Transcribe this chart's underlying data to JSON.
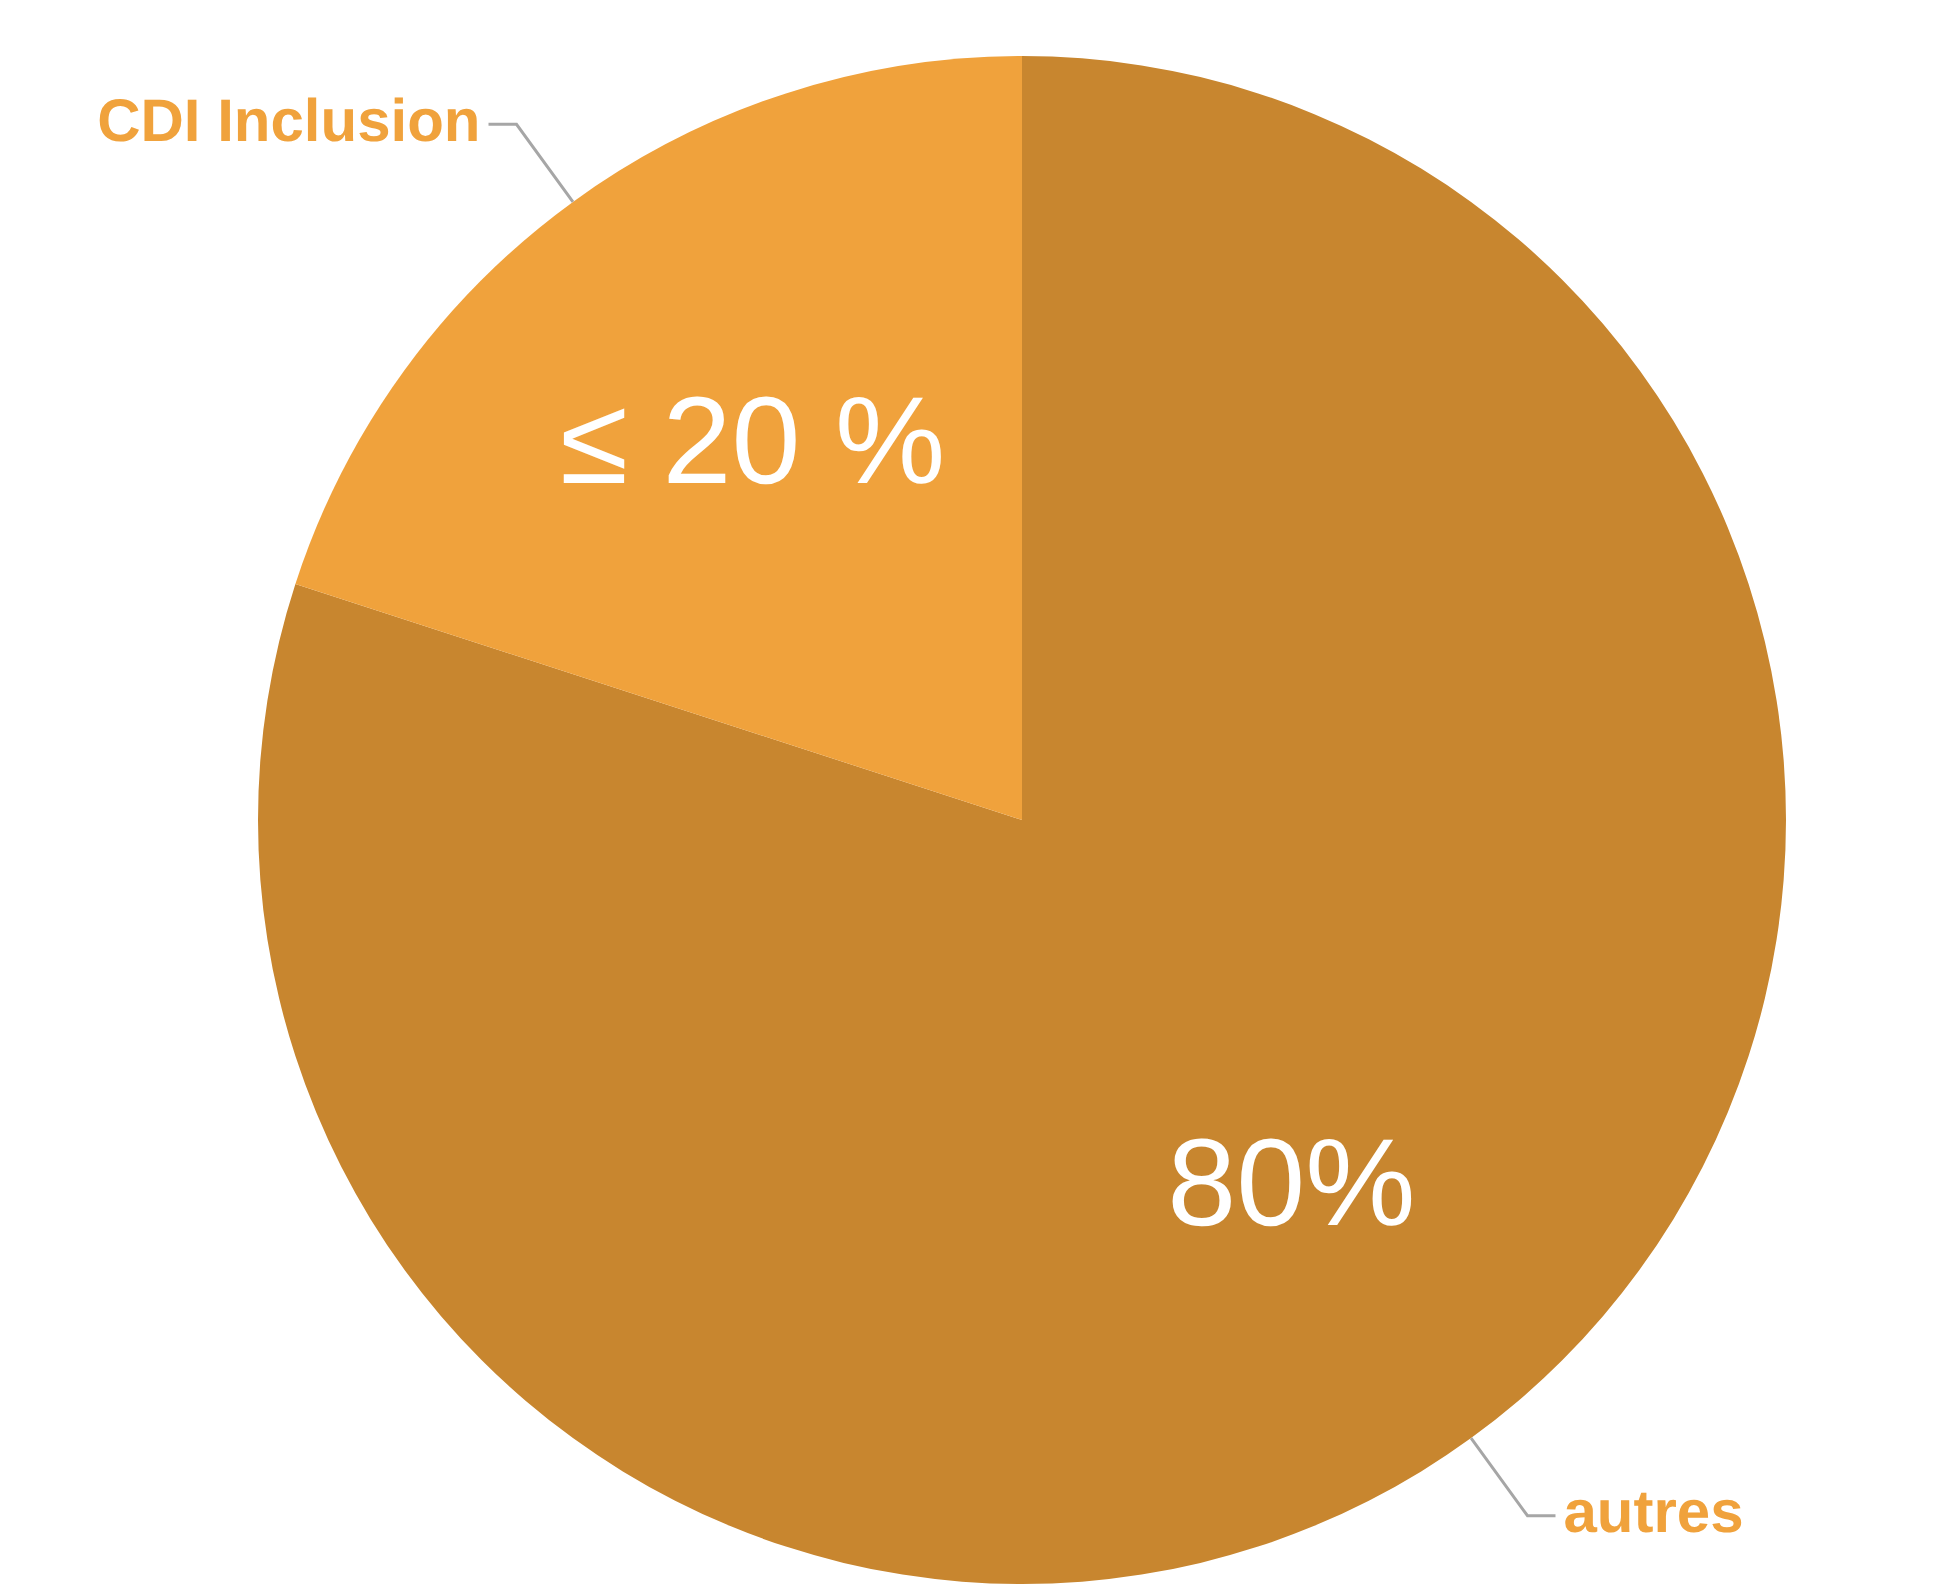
{
  "chart_data": {
    "type": "pie",
    "categories": [
      "autres",
      "CDI Inclusion"
    ],
    "values": [
      80,
      20
    ],
    "colors": [
      "#c8862f",
      "#f0a23c"
    ],
    "value_labels": [
      "80%",
      "≤ 20 %"
    ]
  }
}
